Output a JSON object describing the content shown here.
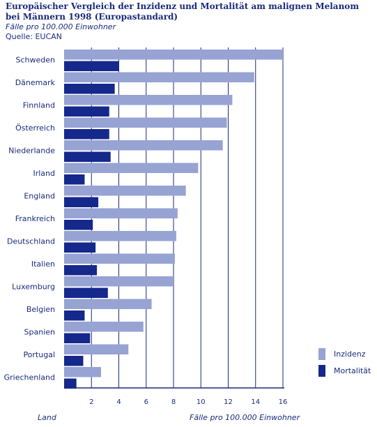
{
  "header": {
    "title": "Europäischer Vergleich der Inzidenz und Mortalität am malignen Melanom bei Männern 1998 (Europastandard)",
    "subtitle": "Fälle pro 100.000 Einwohner",
    "source": "Quelle: EUCAN"
  },
  "colors": {
    "inzidenz": "#97a3d3",
    "mortalitaet": "#15288c",
    "grid": "#1a2a7a"
  },
  "footer": {
    "xlabel_left": "Land",
    "xlabel_right": "Fälle pro 100.000 Einwohner"
  },
  "chart_data": {
    "type": "bar",
    "orientation": "horizontal",
    "categories": [
      "Schweden",
      "Dänemark",
      "Finnland",
      "Österreich",
      "Niederlande",
      "Irland",
      "England",
      "Frankreich",
      "Deutschland",
      "Italien",
      "Luxemburg",
      "Belgien",
      "Spanien",
      "Portugal",
      "Griechenland"
    ],
    "series": [
      {
        "name": "Inzidenz",
        "values": [
          16.0,
          13.9,
          12.3,
          11.9,
          11.6,
          9.8,
          8.9,
          8.3,
          8.2,
          8.1,
          8.0,
          6.4,
          5.8,
          4.7,
          2.7
        ]
      },
      {
        "name": "Mortalität",
        "values": [
          4.0,
          3.7,
          3.3,
          3.3,
          3.4,
          1.5,
          2.5,
          2.1,
          2.3,
          2.4,
          3.2,
          1.5,
          1.9,
          1.4,
          0.9
        ]
      }
    ],
    "xticks": [
      2,
      4,
      6,
      8,
      10,
      12,
      14,
      16
    ],
    "xlim": [
      0,
      16
    ],
    "xlabel": "Fälle pro 100.000 Einwohner",
    "ylabel": "Land",
    "grid": "vertical",
    "legend_position": "bottom-right"
  }
}
